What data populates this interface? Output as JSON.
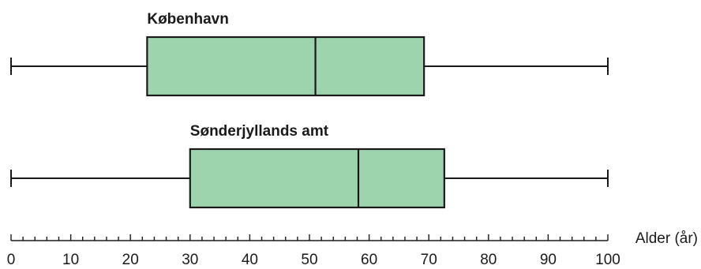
{
  "chart_data": {
    "type": "boxplot",
    "orientation": "horizontal",
    "xlabel": "Alder (år)",
    "xlim": [
      0,
      100
    ],
    "major_ticks": [
      0,
      10,
      20,
      30,
      40,
      50,
      60,
      70,
      80,
      90,
      100
    ],
    "tick_labels": [
      "0",
      "10",
      "20",
      "30",
      "40",
      "50",
      "60",
      "70",
      "80",
      "90",
      "100"
    ],
    "minor_tick_step": 2,
    "box_color": "#9dd4ae",
    "line_color": "#1a1a1a",
    "series": [
      {
        "name": "København",
        "min": 0,
        "q1": 22.8,
        "median": 51,
        "q3": 69.2,
        "max": 100
      },
      {
        "name": "Sønderjyllands amt",
        "min": 0,
        "q1": 30,
        "median": 58.2,
        "q3": 72.6,
        "max": 100
      }
    ]
  }
}
